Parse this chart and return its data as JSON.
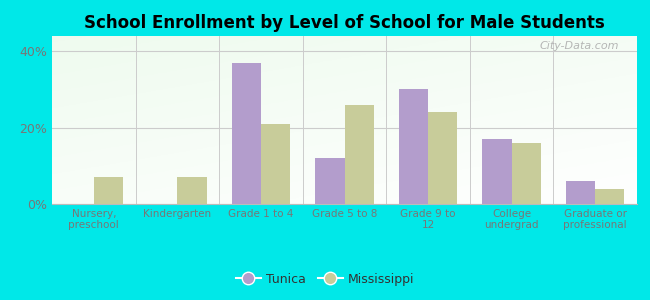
{
  "title": "School Enrollment by Level of School for Male Students",
  "categories": [
    "Nursery,\npreschool",
    "Kindergarten",
    "Grade 1 to 4",
    "Grade 5 to 8",
    "Grade 9 to\n12",
    "College\nundergrad",
    "Graduate or\nprofessional"
  ],
  "tunica": [
    0.0,
    0.0,
    37.0,
    12.0,
    30.0,
    17.0,
    6.0
  ],
  "mississippi": [
    7.0,
    7.0,
    21.0,
    26.0,
    24.0,
    16.0,
    4.0
  ],
  "tunica_color": "#b39dcc",
  "mississippi_color": "#c8cc9a",
  "background_color": "#00e8e8",
  "ylim": [
    0,
    44
  ],
  "yticks": [
    0,
    20,
    40
  ],
  "ytick_labels": [
    "0%",
    "20%",
    "40%"
  ],
  "bar_width": 0.35,
  "legend_tunica": "Tunica",
  "legend_mississippi": "Mississippi",
  "watermark": "City-Data.com"
}
